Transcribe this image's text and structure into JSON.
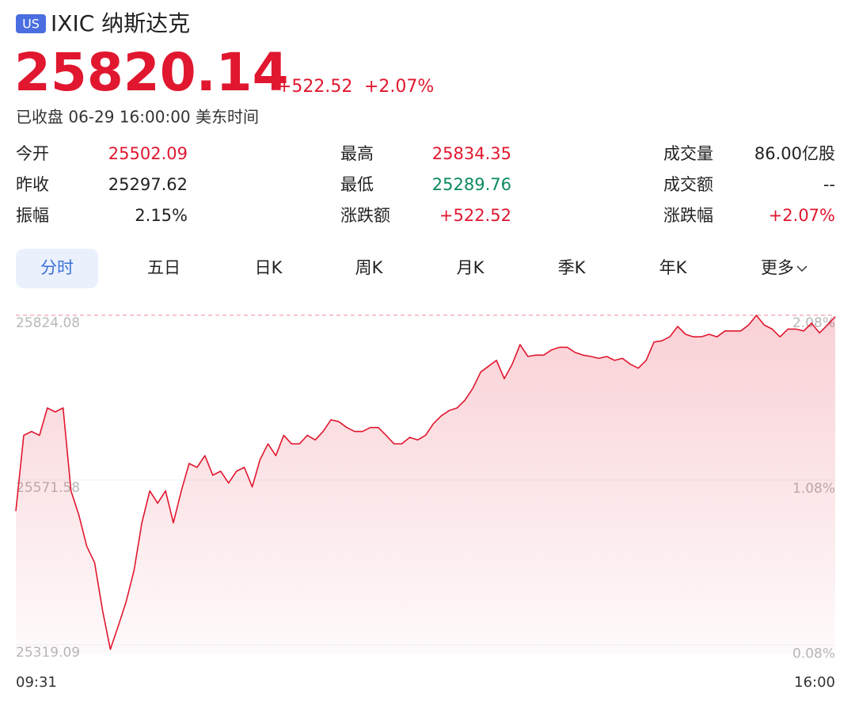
{
  "header": {
    "badge": "US",
    "title": "IXIC 纳斯达克",
    "price": "25820.14",
    "change": "+522.52",
    "change_pct": "+2.07%",
    "status": "已收盘 06-29 16:00:00 美东时间"
  },
  "stats": [
    [
      {
        "label": "今开",
        "value": "25502.09",
        "color": "#e0172f"
      },
      {
        "label": "最高",
        "value": "25834.35",
        "color": "#e0172f"
      },
      {
        "label": "成交量",
        "value": "86.00亿股",
        "color": "#222222"
      }
    ],
    [
      {
        "label": "昨收",
        "value": "25297.62",
        "color": "#222222"
      },
      {
        "label": "最低",
        "value": "25289.76",
        "color": "#0b8a5e"
      },
      {
        "label": "成交额",
        "value": "--",
        "color": "#222222"
      }
    ],
    [
      {
        "label": "振幅",
        "value": "2.15%",
        "color": "#222222"
      },
      {
        "label": "涨跌额",
        "value": "+522.52",
        "color": "#e0172f"
      },
      {
        "label": "涨跌幅",
        "value": "+2.07%",
        "color": "#e0172f"
      }
    ]
  ],
  "tabs": {
    "items": [
      "分时",
      "五日",
      "日K",
      "周K",
      "月K",
      "季K",
      "年K",
      "更多"
    ],
    "selected": 0
  },
  "chart_data": {
    "type": "line",
    "color": "#e0172f",
    "values": [
      25524,
      25640,
      25646,
      25640,
      25682,
      25676,
      25682,
      25555,
      25518,
      25470,
      25445,
      25372,
      25312,
      25348,
      25385,
      25433,
      25506,
      25555,
      25536,
      25555,
      25506,
      25555,
      25597,
      25591,
      25609,
      25579,
      25585,
      25567,
      25585,
      25591,
      25561,
      25603,
      25627,
      25609,
      25640,
      25627,
      25627,
      25640,
      25633,
      25646,
      25664,
      25661,
      25652,
      25646,
      25646,
      25652,
      25652,
      25640,
      25627,
      25627,
      25637,
      25633,
      25640,
      25658,
      25670,
      25678,
      25682,
      25694,
      25712,
      25737,
      25746,
      25755,
      25727,
      25749,
      25779,
      25761,
      25763,
      25763,
      25771,
      25775,
      25775,
      25767,
      25763,
      25761,
      25758,
      25761,
      25755,
      25758,
      25749,
      25743,
      25755,
      25783,
      25785,
      25791,
      25807,
      25795,
      25791,
      25791,
      25795,
      25791,
      25800,
      25800,
      25800,
      25809,
      25824,
      25809,
      25803,
      25791,
      25803,
      25803,
      25800,
      25812,
      25797,
      25809,
      25822
    ],
    "ylim": [
      25304.5,
      25824.08
    ],
    "yticks": [
      25824.08,
      25571.58,
      25319.09
    ],
    "y2lim": [
      0.03,
      2.08
    ],
    "y2ticks": [
      {
        "value": 2.08,
        "label": "2.08%"
      },
      {
        "value": 1.08,
        "label": "1.08%"
      },
      {
        "value": 0.08,
        "label": "0.08%"
      }
    ],
    "x_axis_labels": [
      "09:31",
      "16:00"
    ]
  }
}
